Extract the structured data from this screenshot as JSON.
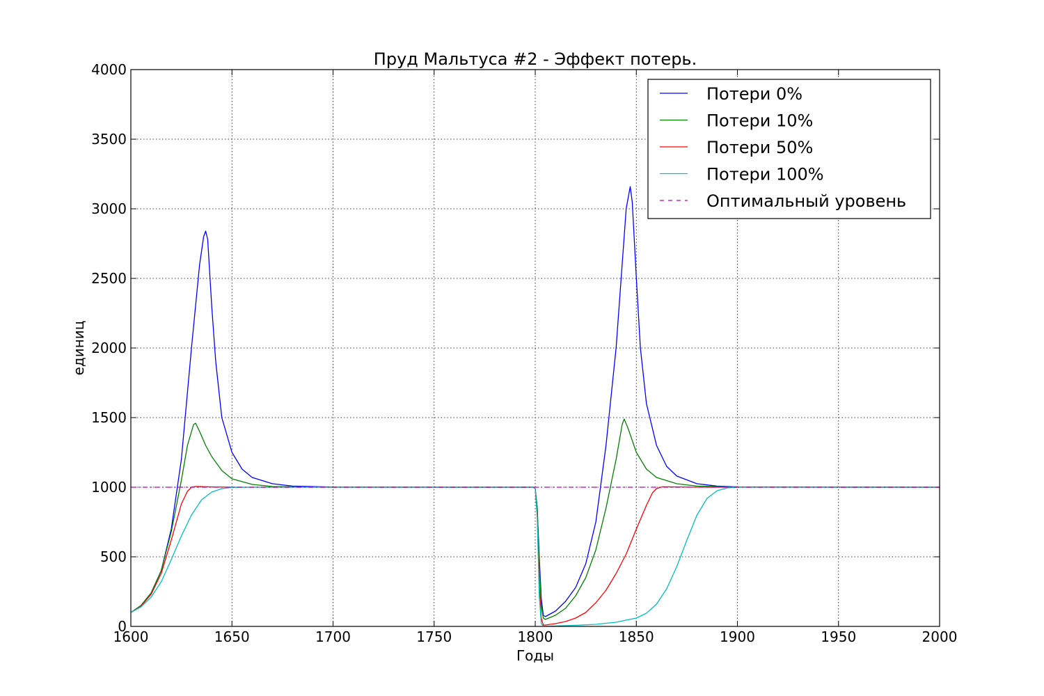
{
  "chart_data": {
    "type": "line",
    "title": "Пруд Мальтуса #2 - Эффект потерь.",
    "xlabel": "Годы",
    "ylabel": "единиц",
    "xlim": [
      1600,
      2000
    ],
    "ylim": [
      0,
      4000
    ],
    "xticks": [
      1600,
      1650,
      1700,
      1750,
      1800,
      1850,
      1900,
      1950,
      2000
    ],
    "yticks": [
      0,
      500,
      1000,
      1500,
      2000,
      2500,
      3000,
      3500,
      4000
    ],
    "grid": true,
    "legend_position": "top-right",
    "series": [
      {
        "name": "Потери 0%",
        "color": "#0000ff",
        "style": "solid",
        "points": [
          [
            1600,
            100
          ],
          [
            1605,
            150
          ],
          [
            1610,
            240
          ],
          [
            1615,
            400
          ],
          [
            1620,
            700
          ],
          [
            1625,
            1200
          ],
          [
            1630,
            2000
          ],
          [
            1634,
            2600
          ],
          [
            1636,
            2800
          ],
          [
            1637,
            2840
          ],
          [
            1638,
            2780
          ],
          [
            1640,
            2300
          ],
          [
            1642,
            1900
          ],
          [
            1645,
            1500
          ],
          [
            1650,
            1250
          ],
          [
            1655,
            1130
          ],
          [
            1660,
            1070
          ],
          [
            1670,
            1025
          ],
          [
            1680,
            1008
          ],
          [
            1700,
            1001
          ],
          [
            1750,
            1000
          ],
          [
            1799,
            1000
          ],
          [
            1800,
            990
          ],
          [
            1801,
            850
          ],
          [
            1802,
            500
          ],
          [
            1803,
            200
          ],
          [
            1804,
            80
          ],
          [
            1805,
            70
          ],
          [
            1810,
            110
          ],
          [
            1815,
            180
          ],
          [
            1820,
            280
          ],
          [
            1825,
            450
          ],
          [
            1830,
            750
          ],
          [
            1835,
            1300
          ],
          [
            1840,
            2000
          ],
          [
            1843,
            2600
          ],
          [
            1845,
            3000
          ],
          [
            1847,
            3160
          ],
          [
            1848,
            3050
          ],
          [
            1850,
            2500
          ],
          [
            1852,
            2000
          ],
          [
            1855,
            1600
          ],
          [
            1860,
            1300
          ],
          [
            1865,
            1150
          ],
          [
            1870,
            1080
          ],
          [
            1880,
            1025
          ],
          [
            1890,
            1008
          ],
          [
            1900,
            1002
          ],
          [
            1950,
            1000
          ],
          [
            2000,
            1000
          ]
        ]
      },
      {
        "name": "Потери 10%",
        "color": "#008000",
        "style": "solid",
        "points": [
          [
            1600,
            100
          ],
          [
            1605,
            150
          ],
          [
            1610,
            240
          ],
          [
            1615,
            400
          ],
          [
            1620,
            680
          ],
          [
            1625,
            1050
          ],
          [
            1628,
            1300
          ],
          [
            1631,
            1450
          ],
          [
            1632,
            1460
          ],
          [
            1634,
            1400
          ],
          [
            1637,
            1300
          ],
          [
            1640,
            1220
          ],
          [
            1645,
            1120
          ],
          [
            1650,
            1060
          ],
          [
            1660,
            1020
          ],
          [
            1670,
            1005
          ],
          [
            1700,
            1000
          ],
          [
            1799,
            1000
          ],
          [
            1800,
            990
          ],
          [
            1801,
            850
          ],
          [
            1802,
            450
          ],
          [
            1803,
            150
          ],
          [
            1804,
            60
          ],
          [
            1805,
            50
          ],
          [
            1810,
            80
          ],
          [
            1815,
            130
          ],
          [
            1820,
            220
          ],
          [
            1825,
            350
          ],
          [
            1830,
            550
          ],
          [
            1835,
            850
          ],
          [
            1840,
            1200
          ],
          [
            1843,
            1450
          ],
          [
            1844,
            1490
          ],
          [
            1846,
            1420
          ],
          [
            1850,
            1250
          ],
          [
            1855,
            1130
          ],
          [
            1860,
            1070
          ],
          [
            1870,
            1025
          ],
          [
            1880,
            1008
          ],
          [
            1900,
            1001
          ],
          [
            2000,
            1000
          ]
        ]
      },
      {
        "name": "Потери 50%",
        "color": "#ff0000",
        "style": "solid",
        "points": [
          [
            1600,
            100
          ],
          [
            1605,
            145
          ],
          [
            1610,
            230
          ],
          [
            1615,
            380
          ],
          [
            1620,
            620
          ],
          [
            1625,
            880
          ],
          [
            1628,
            970
          ],
          [
            1630,
            1000
          ],
          [
            1632,
            1005
          ],
          [
            1635,
            1004
          ],
          [
            1640,
            1002
          ],
          [
            1650,
            1000
          ],
          [
            1799,
            1000
          ],
          [
            1800,
            990
          ],
          [
            1801,
            800
          ],
          [
            1802,
            300
          ],
          [
            1803,
            60
          ],
          [
            1804,
            10
          ],
          [
            1805,
            10
          ],
          [
            1810,
            20
          ],
          [
            1815,
            35
          ],
          [
            1820,
            60
          ],
          [
            1825,
            100
          ],
          [
            1830,
            170
          ],
          [
            1835,
            260
          ],
          [
            1840,
            380
          ],
          [
            1845,
            520
          ],
          [
            1850,
            700
          ],
          [
            1855,
            870
          ],
          [
            1858,
            960
          ],
          [
            1860,
            990
          ],
          [
            1863,
            1003
          ],
          [
            1870,
            1002
          ],
          [
            1880,
            1000
          ],
          [
            2000,
            1000
          ]
        ]
      },
      {
        "name": "Потери 100%",
        "color": "#00bfbf",
        "style": "solid",
        "points": [
          [
            1600,
            100
          ],
          [
            1605,
            140
          ],
          [
            1610,
            210
          ],
          [
            1615,
            320
          ],
          [
            1620,
            480
          ],
          [
            1625,
            650
          ],
          [
            1630,
            800
          ],
          [
            1635,
            910
          ],
          [
            1640,
            965
          ],
          [
            1645,
            990
          ],
          [
            1650,
            998
          ],
          [
            1660,
            1000
          ],
          [
            1799,
            1000
          ],
          [
            1800,
            990
          ],
          [
            1801,
            780
          ],
          [
            1802,
            220
          ],
          [
            1803,
            20
          ],
          [
            1804,
            2
          ],
          [
            1805,
            1
          ],
          [
            1810,
            3
          ],
          [
            1820,
            8
          ],
          [
            1830,
            15
          ],
          [
            1840,
            30
          ],
          [
            1850,
            60
          ],
          [
            1855,
            95
          ],
          [
            1860,
            160
          ],
          [
            1865,
            270
          ],
          [
            1870,
            430
          ],
          [
            1875,
            620
          ],
          [
            1880,
            800
          ],
          [
            1885,
            920
          ],
          [
            1890,
            975
          ],
          [
            1895,
            995
          ],
          [
            1900,
            1000
          ],
          [
            2000,
            1000
          ]
        ]
      },
      {
        "name": "Оптимальный уровень",
        "color": "#bf00bf",
        "style": "dashdot",
        "points": [
          [
            1600,
            1000
          ],
          [
            2000,
            1000
          ]
        ]
      }
    ]
  }
}
